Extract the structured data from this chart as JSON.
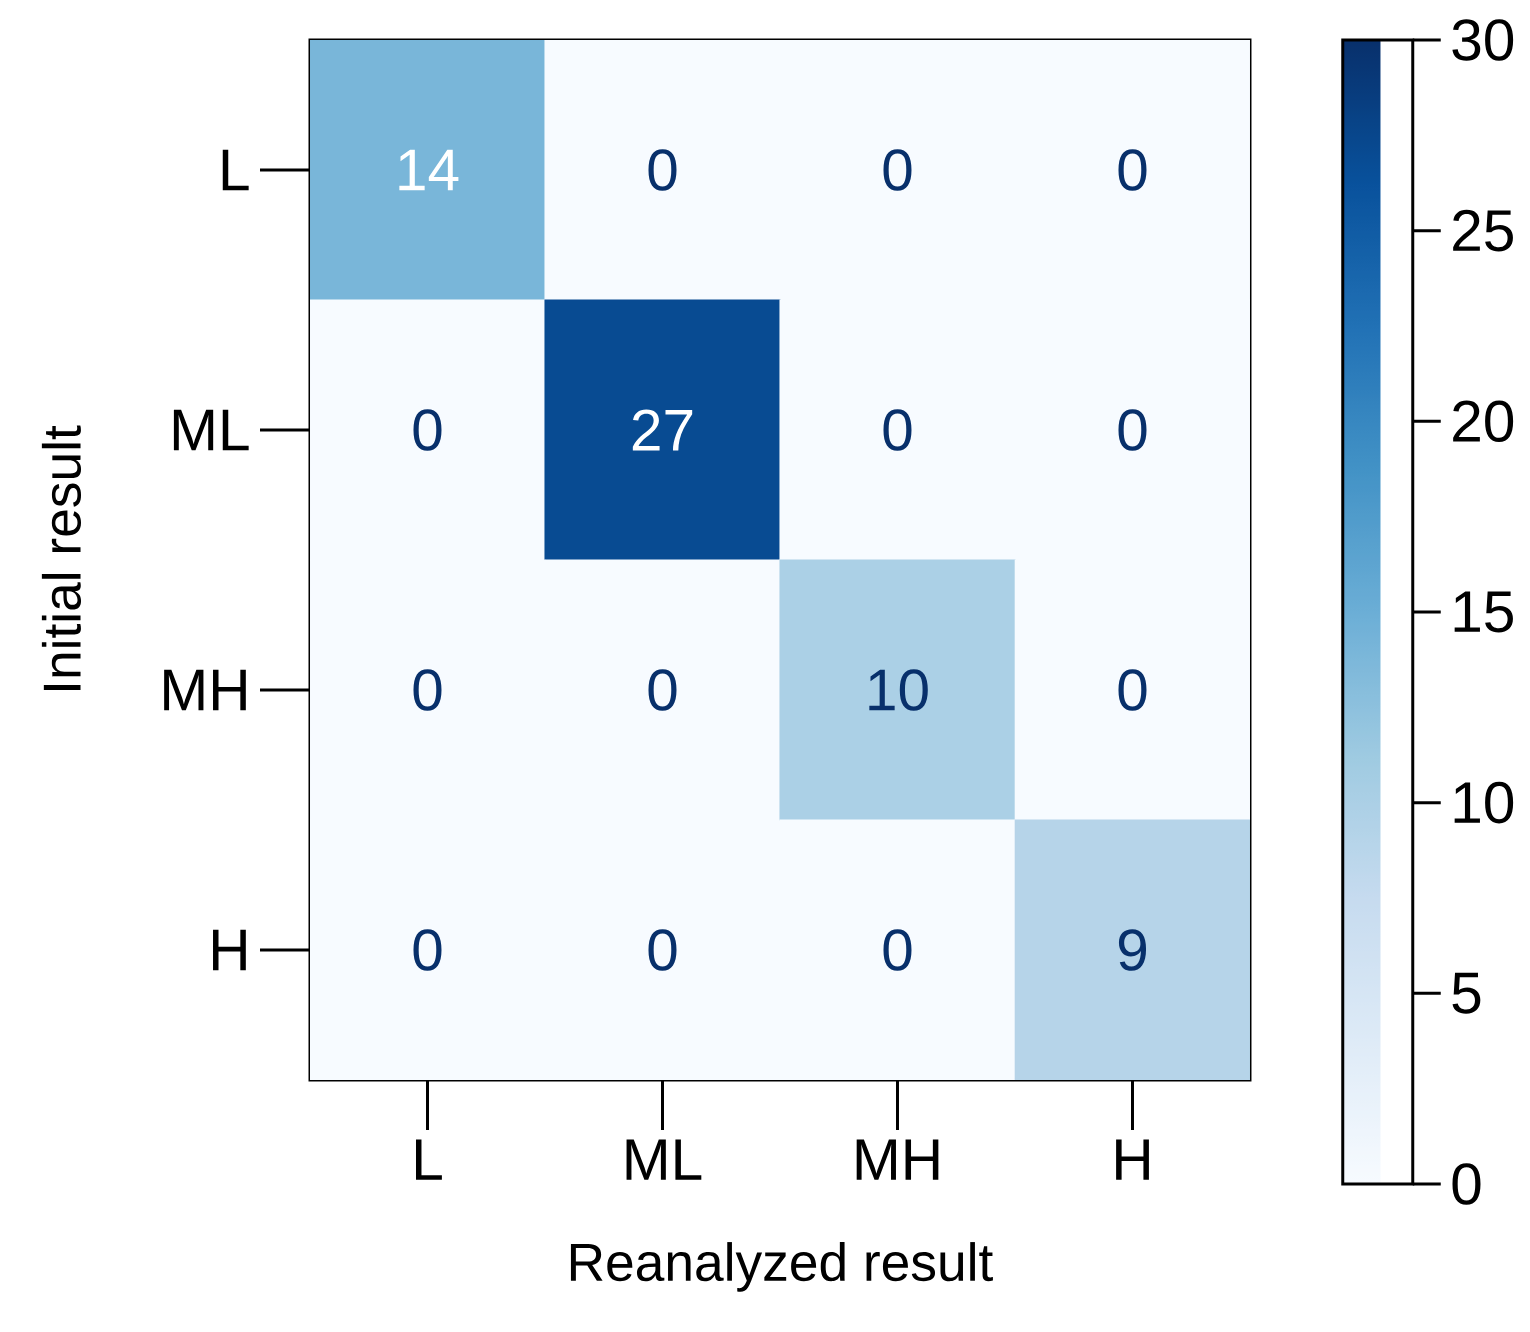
{
  "chart_data": {
    "type": "heatmap",
    "xlabel": "Reanalyzed result",
    "ylabel": "Initial result",
    "categories": [
      "L",
      "ML",
      "MH",
      "H"
    ],
    "y_categories": [
      "L",
      "ML",
      "MH",
      "H"
    ],
    "cells": [
      [
        14,
        0,
        0,
        0
      ],
      [
        0,
        27,
        0,
        0
      ],
      [
        0,
        0,
        10,
        0
      ],
      [
        0,
        0,
        0,
        9
      ]
    ],
    "data_labels": true,
    "clim": [
      0,
      30
    ],
    "cticks": [
      0,
      5,
      10,
      15,
      20,
      25,
      30
    ]
  }
}
